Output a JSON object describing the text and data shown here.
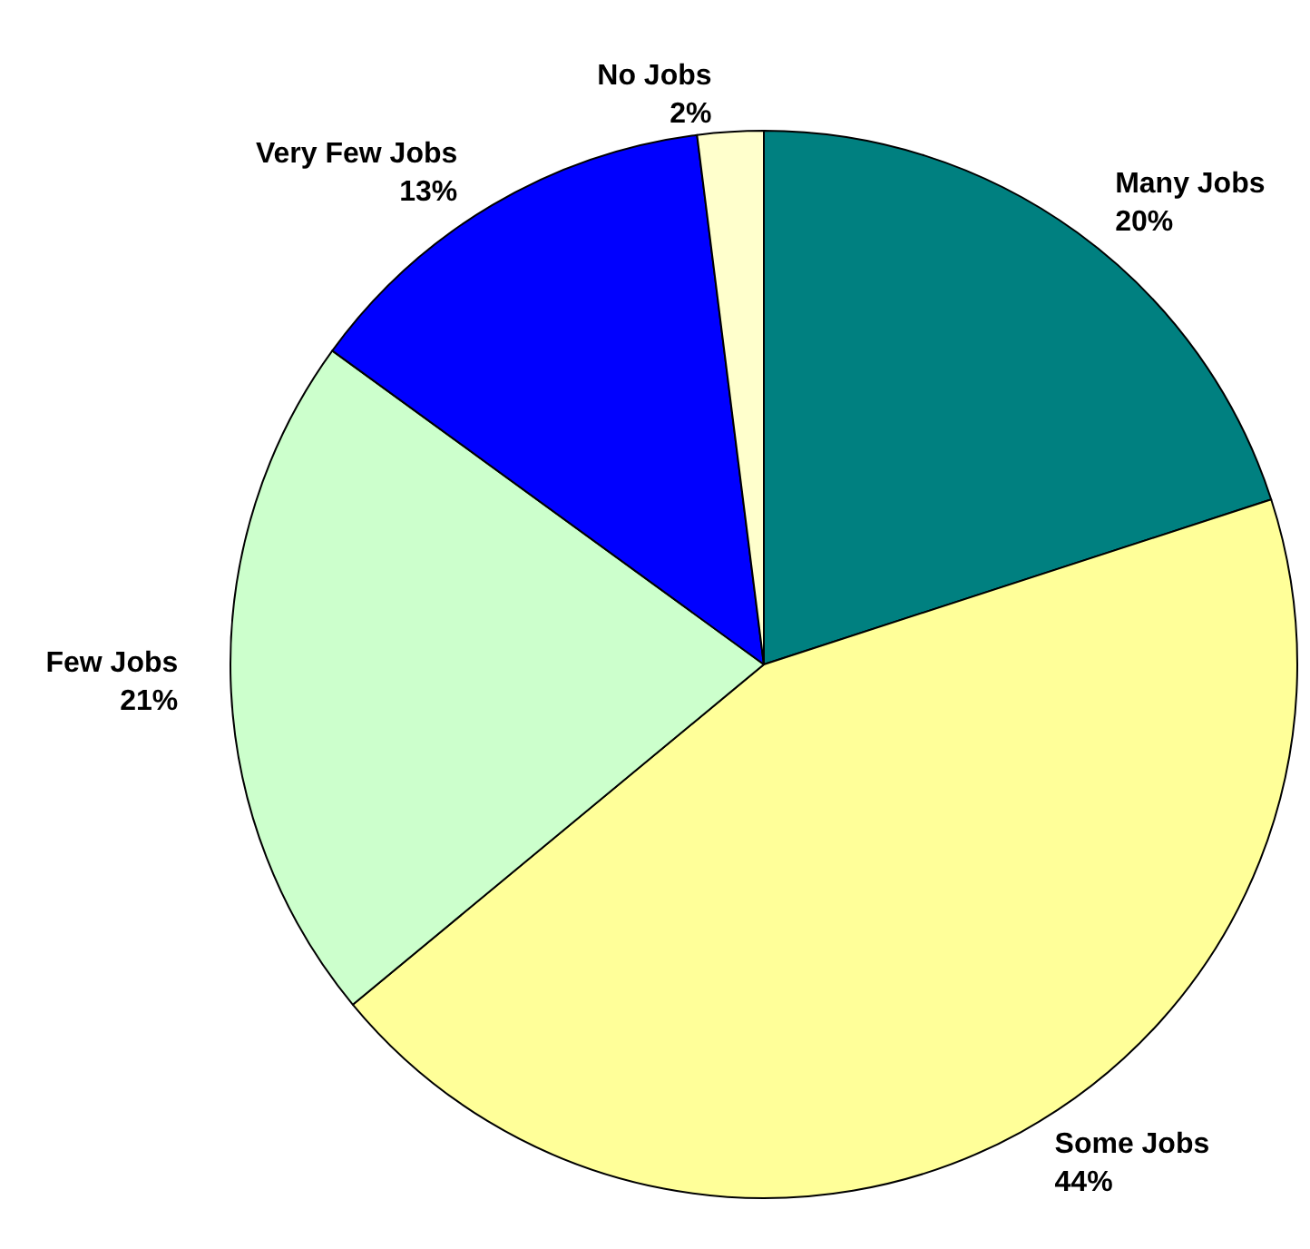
{
  "chart_data": {
    "type": "pie",
    "categories": [
      "Many Jobs",
      "Some Jobs",
      "Few Jobs",
      "Very Few Jobs",
      "No Jobs"
    ],
    "values": [
      20,
      44,
      21,
      13,
      2
    ],
    "value_labels": [
      "20%",
      "44%",
      "21%",
      "13%",
      "2%"
    ],
    "colors": [
      "#008080",
      "#ffff99",
      "#ccffcc",
      "#0000ff",
      "#ffffcc"
    ],
    "legend": false
  }
}
